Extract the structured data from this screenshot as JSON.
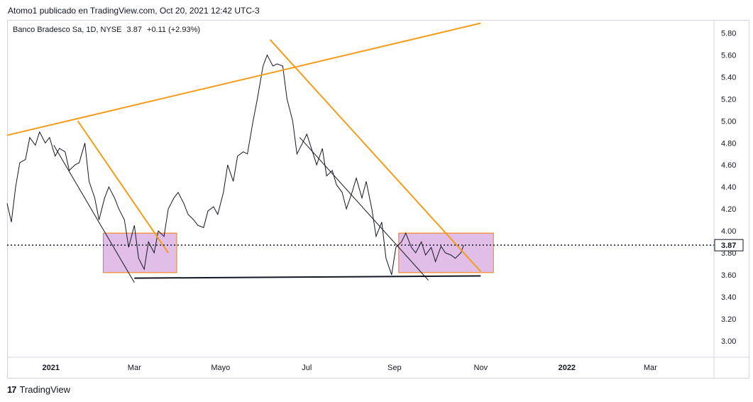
{
  "header": {
    "publish_text": "Atomo1 publicado en TradingView.com, Oct 20, 2021 12:42 UTC-3"
  },
  "legend": {
    "symbol": "Banco Bradesco Sa, 1D, NYSE",
    "price": "3.87",
    "change": "+0.11 (+2.93%)"
  },
  "footer": {
    "logo_text": "17",
    "brand": "TradingView"
  },
  "chart_data": {
    "type": "line",
    "symbol": "Banco Bradesco Sa",
    "interval": "1D",
    "exchange": "NYSE",
    "last_price": 3.87,
    "last_price_label": "3.87",
    "ylim": [
      2.85,
      5.92
    ],
    "xlim": [
      "2020-12-01",
      "2022-04-15"
    ],
    "y_ticks": [
      "3.00",
      "3.20",
      "3.40",
      "3.60",
      "3.80",
      "4.00",
      "4.20",
      "4.40",
      "4.60",
      "4.80",
      "5.00",
      "5.20",
      "5.40",
      "5.60",
      "5.80"
    ],
    "x_ticks": [
      {
        "label": "2021",
        "date": "2021-01-01",
        "bold": true
      },
      {
        "label": "Mar",
        "date": "2021-03-01",
        "bold": false
      },
      {
        "label": "Mayo",
        "date": "2021-05-01",
        "bold": false
      },
      {
        "label": "Jul",
        "date": "2021-07-01",
        "bold": false
      },
      {
        "label": "Sep",
        "date": "2021-09-01",
        "bold": false
      },
      {
        "label": "Nov",
        "date": "2021-11-01",
        "bold": false
      },
      {
        "label": "2022",
        "date": "2022-01-01",
        "bold": true
      },
      {
        "label": "Mar",
        "date": "2022-03-01",
        "bold": false
      }
    ],
    "series": [
      {
        "x": [
          "2020-12-01",
          "2020-12-04",
          "2020-12-07",
          "2020-12-10",
          "2020-12-14",
          "2020-12-17",
          "2020-12-21",
          "2020-12-24",
          "2020-12-28",
          "2020-12-31",
          "2021-01-04",
          "2021-01-07",
          "2021-01-11",
          "2021-01-14",
          "2021-01-18",
          "2021-01-21",
          "2021-01-25",
          "2021-01-28",
          "2021-02-01",
          "2021-02-04",
          "2021-02-08",
          "2021-02-11",
          "2021-02-15",
          "2021-02-18",
          "2021-02-22",
          "2021-02-25",
          "2021-03-01",
          "2021-03-04",
          "2021-03-08",
          "2021-03-11",
          "2021-03-15",
          "2021-03-18",
          "2021-03-22",
          "2021-03-25",
          "2021-03-29",
          "2021-04-01",
          "2021-04-05",
          "2021-04-08",
          "2021-04-12",
          "2021-04-15",
          "2021-04-19",
          "2021-04-22",
          "2021-04-26",
          "2021-04-29",
          "2021-05-03",
          "2021-05-06",
          "2021-05-10",
          "2021-05-13",
          "2021-05-17",
          "2021-05-20",
          "2021-05-24",
          "2021-05-27",
          "2021-05-31",
          "2021-06-03",
          "2021-06-07",
          "2021-06-10",
          "2021-06-14",
          "2021-06-17",
          "2021-06-21",
          "2021-06-24",
          "2021-06-28",
          "2021-07-01",
          "2021-07-05",
          "2021-07-08",
          "2021-07-12",
          "2021-07-15",
          "2021-07-19",
          "2021-07-22",
          "2021-07-26",
          "2021-07-29",
          "2021-08-02",
          "2021-08-05",
          "2021-08-09",
          "2021-08-12",
          "2021-08-16",
          "2021-08-19",
          "2021-08-23",
          "2021-08-26",
          "2021-08-30",
          "2021-09-02",
          "2021-09-06",
          "2021-09-09",
          "2021-09-13",
          "2021-09-16",
          "2021-09-20",
          "2021-09-23",
          "2021-09-27",
          "2021-09-30",
          "2021-10-04",
          "2021-10-07",
          "2021-10-11",
          "2021-10-14",
          "2021-10-18",
          "2021-10-20"
        ],
        "y": [
          4.25,
          4.08,
          4.4,
          4.62,
          4.65,
          4.85,
          4.78,
          4.9,
          4.8,
          4.85,
          4.68,
          4.75,
          4.72,
          4.55,
          4.6,
          4.62,
          4.8,
          4.45,
          4.3,
          4.1,
          4.3,
          4.4,
          4.3,
          4.2,
          4.1,
          3.85,
          4.05,
          3.75,
          3.65,
          3.9,
          3.8,
          4.0,
          3.95,
          4.2,
          4.3,
          4.35,
          4.25,
          4.15,
          4.1,
          4.05,
          4.03,
          4.18,
          4.22,
          4.15,
          4.35,
          4.6,
          4.45,
          4.68,
          4.72,
          4.7,
          5.0,
          5.2,
          5.5,
          5.6,
          5.5,
          5.52,
          5.5,
          5.2,
          5.0,
          4.7,
          4.8,
          4.88,
          4.72,
          4.6,
          4.75,
          4.5,
          4.55,
          4.42,
          4.35,
          4.2,
          4.35,
          4.48,
          4.3,
          4.45,
          4.2,
          3.95,
          4.08,
          3.75,
          3.6,
          3.85,
          3.9,
          3.98,
          3.85,
          3.8,
          3.9,
          3.78,
          3.85,
          3.72,
          3.86,
          3.8,
          3.78,
          3.75,
          3.8,
          3.87
        ]
      }
    ],
    "trendlines_orange": [
      {
        "x1": "2020-12-01",
        "y1": 4.87,
        "x2": "2021-11-01",
        "y2": 5.89
      },
      {
        "x1": "2021-01-20",
        "y1": 5.0,
        "x2": "2021-03-25",
        "y2": 3.8
      },
      {
        "x1": "2021-06-05",
        "y1": 5.74,
        "x2": "2021-11-01",
        "y2": 3.63
      }
    ],
    "trendlines_black": [
      {
        "x1": "2021-01-03",
        "y1": 4.78,
        "x2": "2021-03-01",
        "y2": 3.53
      },
      {
        "x1": "2021-06-26",
        "y1": 4.85,
        "x2": "2021-09-25",
        "y2": 3.55
      },
      {
        "x1": "2021-03-01",
        "y1": 3.57,
        "x2": "2021-11-01",
        "y2": 3.59
      }
    ],
    "horizontal_line": {
      "y": 3.87,
      "style": "dotted"
    },
    "boxes": [
      {
        "x1": "2021-02-07",
        "x2": "2021-03-31",
        "y1": 3.62,
        "y2": 3.98,
        "fill": "#e1bee7",
        "stroke": "#f57c00"
      },
      {
        "x1": "2021-09-04",
        "x2": "2021-11-10",
        "y1": 3.62,
        "y2": 3.98,
        "fill": "#e1bee7",
        "stroke": "#f57c00"
      }
    ]
  },
  "colors": {
    "price_line": "#131722",
    "trendline_orange": "#f59c1a",
    "box_fill": "#e1bee7",
    "box_stroke": "#f57c00",
    "axis_text": "#131722"
  }
}
